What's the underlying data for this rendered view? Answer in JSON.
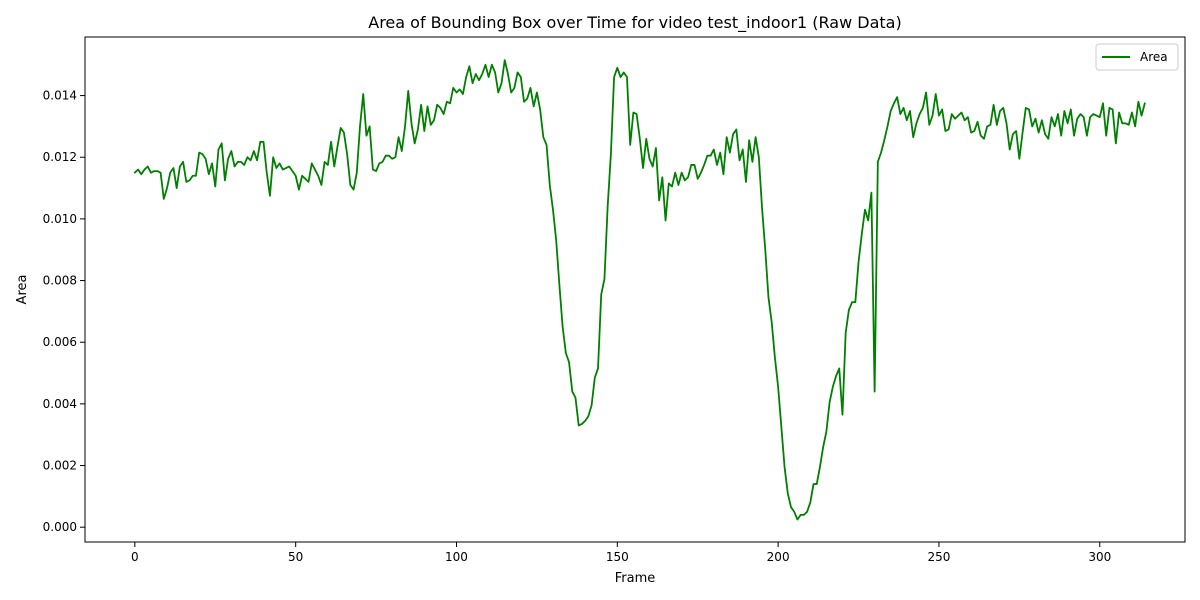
{
  "chart_data": {
    "type": "line",
    "title": "Area of Bounding Box over Time for video test_indoor1 (Raw Data)",
    "xlabel": "Frame",
    "ylabel": "Area",
    "xlim": [
      -15.5,
      326.5
    ],
    "ylim": [
      -0.00048,
      0.0159
    ],
    "xticks": [
      0,
      50,
      100,
      150,
      200,
      250,
      300
    ],
    "xtick_labels": [
      "0",
      "50",
      "100",
      "150",
      "200",
      "250",
      "300"
    ],
    "yticks": [
      0.0,
      0.002,
      0.004,
      0.006,
      0.008,
      0.01,
      0.012,
      0.014
    ],
    "ytick_labels": [
      "0.000",
      "0.002",
      "0.004",
      "0.006",
      "0.008",
      "0.010",
      "0.012",
      "0.014"
    ],
    "grid": false,
    "legend_position": "upper right",
    "series": [
      {
        "name": "Area",
        "color": "#008000",
        "x_start": 0,
        "x_step": 1,
        "values": [
          0.0115,
          0.0116,
          0.01145,
          0.0116,
          0.0117,
          0.0115,
          0.01155,
          0.01155,
          0.0115,
          0.01065,
          0.011,
          0.0115,
          0.01165,
          0.011,
          0.0117,
          0.01185,
          0.0112,
          0.01125,
          0.0114,
          0.0114,
          0.01215,
          0.0121,
          0.01195,
          0.01145,
          0.0118,
          0.01105,
          0.01225,
          0.01245,
          0.01125,
          0.01195,
          0.0122,
          0.0117,
          0.01185,
          0.01185,
          0.01175,
          0.012,
          0.0119,
          0.0122,
          0.0119,
          0.0125,
          0.0125,
          0.0115,
          0.01075,
          0.012,
          0.01165,
          0.0118,
          0.0116,
          0.01165,
          0.0117,
          0.01155,
          0.0114,
          0.01095,
          0.0114,
          0.0113,
          0.0112,
          0.0118,
          0.0116,
          0.0114,
          0.0111,
          0.01185,
          0.01175,
          0.0125,
          0.0117,
          0.01235,
          0.01295,
          0.0128,
          0.0121,
          0.0111,
          0.01095,
          0.0115,
          0.013,
          0.01405,
          0.0127,
          0.013,
          0.0116,
          0.01155,
          0.0118,
          0.01185,
          0.01205,
          0.01205,
          0.01195,
          0.012,
          0.01265,
          0.0122,
          0.013,
          0.01415,
          0.0131,
          0.01245,
          0.0129,
          0.0137,
          0.01285,
          0.01365,
          0.01305,
          0.0132,
          0.0137,
          0.0136,
          0.0134,
          0.0138,
          0.01375,
          0.01425,
          0.0141,
          0.0142,
          0.01405,
          0.0146,
          0.01495,
          0.0144,
          0.0147,
          0.0145,
          0.0147,
          0.015,
          0.0146,
          0.015,
          0.01475,
          0.0141,
          0.0144,
          0.01515,
          0.0147,
          0.0141,
          0.01425,
          0.01475,
          0.0146,
          0.0138,
          0.0139,
          0.01425,
          0.01365,
          0.0141,
          0.01355,
          0.01265,
          0.0124,
          0.0111,
          0.0103,
          0.0093,
          0.00785,
          0.0065,
          0.00565,
          0.00535,
          0.0044,
          0.0042,
          0.0033,
          0.00335,
          0.00345,
          0.0036,
          0.00395,
          0.00485,
          0.00515,
          0.00755,
          0.00805,
          0.0104,
          0.0121,
          0.0146,
          0.0149,
          0.0146,
          0.01475,
          0.0146,
          0.0124,
          0.01345,
          0.0134,
          0.0126,
          0.01165,
          0.0126,
          0.01195,
          0.0117,
          0.0123,
          0.0106,
          0.01135,
          0.00995,
          0.01115,
          0.01105,
          0.0115,
          0.0111,
          0.0115,
          0.01125,
          0.01135,
          0.01175,
          0.01175,
          0.0113,
          0.0115,
          0.01175,
          0.01205,
          0.01205,
          0.01225,
          0.01175,
          0.01215,
          0.01145,
          0.01265,
          0.01215,
          0.01275,
          0.0129,
          0.0119,
          0.01225,
          0.0112,
          0.01255,
          0.01185,
          0.01265,
          0.012,
          0.01035,
          0.009,
          0.00745,
          0.00665,
          0.0055,
          0.00455,
          0.00325,
          0.00195,
          0.0011,
          0.00065,
          0.0005,
          0.00025,
          0.0004,
          0.0004,
          0.0005,
          0.0008,
          0.0014,
          0.0014,
          0.00195,
          0.0026,
          0.0031,
          0.00405,
          0.00455,
          0.0049,
          0.00515,
          0.00365,
          0.0063,
          0.00705,
          0.0073,
          0.0073,
          0.0086,
          0.0095,
          0.0103,
          0.00995,
          0.01085,
          0.0044,
          0.01185,
          0.01215,
          0.01255,
          0.013,
          0.0135,
          0.01375,
          0.01395,
          0.0134,
          0.0136,
          0.0132,
          0.0135,
          0.01265,
          0.0131,
          0.0134,
          0.0136,
          0.0141,
          0.01305,
          0.01335,
          0.01405,
          0.01335,
          0.01355,
          0.01285,
          0.0129,
          0.0134,
          0.01325,
          0.01335,
          0.01345,
          0.0132,
          0.0133,
          0.0128,
          0.01285,
          0.01315,
          0.0127,
          0.0126,
          0.013,
          0.01305,
          0.0137,
          0.01305,
          0.0135,
          0.0136,
          0.0131,
          0.01225,
          0.01275,
          0.01285,
          0.01195,
          0.0128,
          0.0136,
          0.01355,
          0.013,
          0.01325,
          0.0128,
          0.0132,
          0.01275,
          0.0126,
          0.0133,
          0.013,
          0.0134,
          0.0127,
          0.0135,
          0.0131,
          0.01355,
          0.0127,
          0.01325,
          0.0134,
          0.0133,
          0.0127,
          0.0133,
          0.0134,
          0.01335,
          0.0133,
          0.01375,
          0.0127,
          0.0136,
          0.01355,
          0.01245,
          0.01345,
          0.0131,
          0.0131,
          0.01305,
          0.01345,
          0.013,
          0.0138,
          0.01335,
          0.01375
        ]
      }
    ]
  }
}
